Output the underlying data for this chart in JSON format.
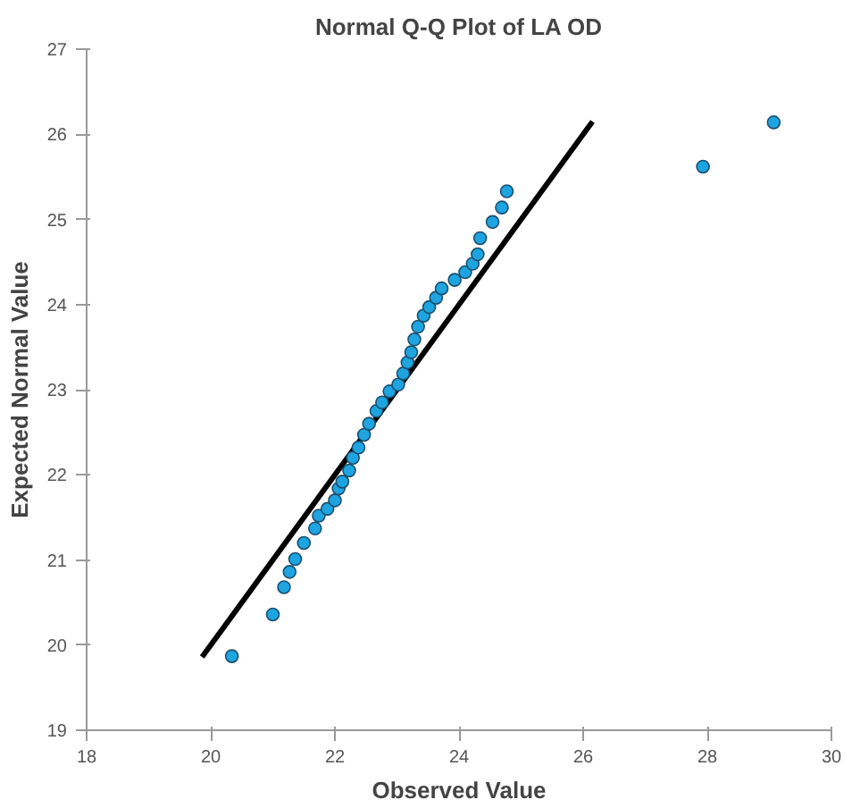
{
  "chart_data": {
    "type": "scatter",
    "title": "Normal Q-Q Plot of LA OD",
    "xlabel": "Observed Value",
    "ylabel": "Expected Normal Value",
    "xlim": [
      18,
      30
    ],
    "xticks": [
      18,
      20,
      22,
      24,
      26,
      28,
      30
    ],
    "ylim": [
      19,
      27
    ],
    "yticks": [
      19,
      20,
      21,
      22,
      23,
      24,
      25,
      26,
      27
    ],
    "grid": false,
    "series": [
      {
        "type": "line",
        "marker": "none",
        "color": "#000000",
        "x": [
          19.86,
          26.15
        ],
        "values": [
          19.86,
          26.15
        ]
      },
      {
        "marker": "circle",
        "color": "#1ea4e0",
        "x": [
          20.34,
          21.0,
          21.18,
          21.27,
          21.36,
          21.5,
          21.68,
          21.74,
          21.88,
          22.0,
          22.06,
          22.12,
          22.23,
          22.29,
          22.38,
          22.47,
          22.55,
          22.67,
          22.76,
          22.88,
          23.02,
          23.1,
          23.17,
          23.23,
          23.28,
          23.34,
          23.43,
          23.52,
          23.63,
          23.72,
          23.93,
          24.1,
          24.22,
          24.3,
          24.34,
          24.54,
          24.69,
          24.77,
          27.93,
          29.07
        ],
        "values": [
          19.87,
          20.36,
          20.68,
          20.86,
          21.01,
          21.2,
          21.37,
          21.52,
          21.6,
          21.7,
          21.84,
          21.92,
          22.05,
          22.2,
          22.32,
          22.47,
          22.6,
          22.75,
          22.85,
          22.98,
          23.06,
          23.19,
          23.32,
          23.44,
          23.59,
          23.74,
          23.87,
          23.97,
          24.08,
          24.19,
          24.29,
          24.38,
          24.48,
          24.59,
          24.78,
          24.97,
          25.14,
          25.33,
          25.62,
          26.14
        ]
      }
    ]
  }
}
